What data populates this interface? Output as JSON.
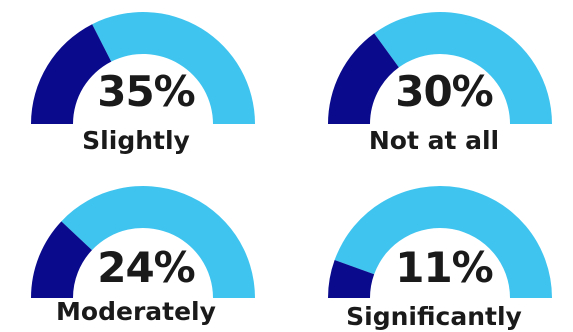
{
  "colors": {
    "filled": "#0a0a8c",
    "remaining": "#3fc4ef"
  },
  "chart_data": {
    "type": "gauge",
    "title": "",
    "gauges": [
      {
        "label": "Slightly",
        "value": 35,
        "value_text": "35%"
      },
      {
        "label": "Not at all",
        "value": 30,
        "value_text": "30%"
      },
      {
        "label": "Moderately",
        "value": 24,
        "value_text": "24%"
      },
      {
        "label": "Significantly",
        "value": 11,
        "value_text": "11%"
      }
    ],
    "range": [
      0,
      100
    ]
  }
}
